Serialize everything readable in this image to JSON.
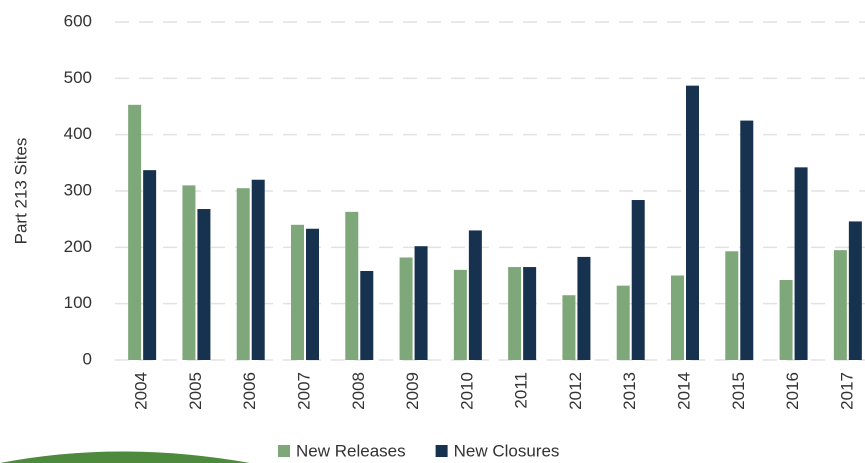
{
  "chart_data": {
    "type": "bar",
    "y_label": "Part 213 Sites",
    "categories": [
      "2004",
      "2005",
      "2006",
      "2007",
      "2008",
      "2009",
      "2010",
      "2011",
      "2012",
      "2013",
      "2014",
      "2015",
      "2016",
      "2017"
    ],
    "series": [
      {
        "name": "New Releases",
        "color": "#7fa87a",
        "values": [
          453,
          310,
          305,
          240,
          263,
          182,
          160,
          165,
          115,
          132,
          150,
          193,
          142,
          195
        ]
      },
      {
        "name": "New Closures",
        "color": "#17324f",
        "values": [
          337,
          268,
          320,
          233,
          158,
          202,
          230,
          165,
          183,
          284,
          487,
          425,
          342,
          246
        ]
      }
    ],
    "ylim": [
      0,
      600
    ],
    "yticks": [
      0,
      100,
      200,
      300,
      400,
      500,
      600
    ],
    "grid": true,
    "legend": "bottom"
  }
}
